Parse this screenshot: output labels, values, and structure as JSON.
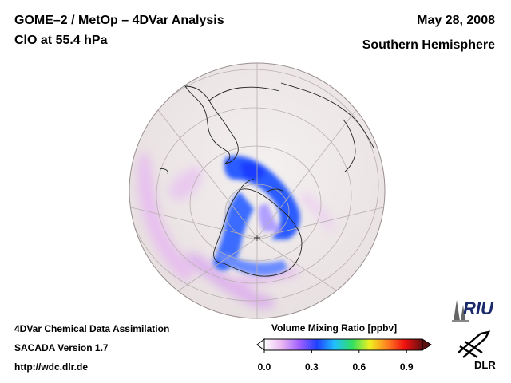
{
  "header": {
    "title_line1": "GOME–2 / MetOp – 4DVar Analysis",
    "title_line2": "ClO at 55.4 hPa",
    "date": "May 28, 2008",
    "region": "Southern Hemisphere"
  },
  "footer": {
    "line1": "4DVar Chemical Data Assimilation",
    "line2": "SACADA Version 1.7",
    "line3": "http://wdc.dlr.de"
  },
  "colorbar": {
    "title": "Volume Mixing Ratio [ppbv]",
    "ticks": [
      "0.0",
      "0.3",
      "0.6",
      "0.9"
    ],
    "tick_values": [
      0.0,
      0.3,
      0.6,
      0.9
    ],
    "range": [
      0.0,
      1.0
    ],
    "colors": [
      "#ffffff",
      "#e8b7f0",
      "#a060ff",
      "#2040ff",
      "#20c0ff",
      "#30e060",
      "#f0f020",
      "#ff8020",
      "#f01010",
      "#601010"
    ]
  },
  "logos": {
    "riu": "RIU",
    "dlr": "DLR"
  },
  "map": {
    "projection": "orthographic",
    "center": "South Pole",
    "background_color": "#f0ecec",
    "high_color": "#1e50ff",
    "low_color": "#e0a0f0"
  }
}
